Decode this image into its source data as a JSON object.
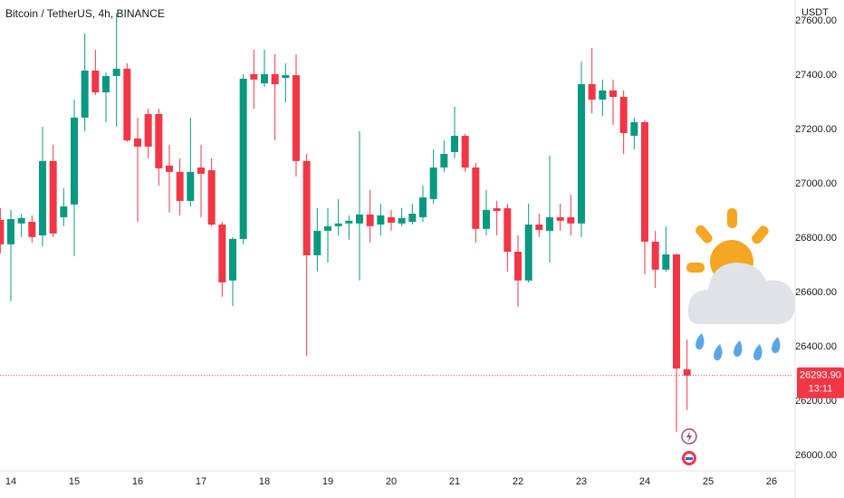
{
  "chart_data": {
    "type": "candlestick",
    "title": "Bitcoin / TetherUS, 4h, BINANCE",
    "y_axis_label": "USDT",
    "categories": [
      null,
      "14",
      null,
      null,
      null,
      null,
      null,
      "15",
      null,
      null,
      null,
      null,
      null,
      "16",
      null,
      null,
      null,
      null,
      null,
      "17",
      null,
      null,
      null,
      null,
      null,
      "18",
      null,
      null,
      null,
      null,
      null,
      "19",
      null,
      null,
      null,
      null,
      null,
      "20",
      null,
      null,
      null,
      null,
      null,
      "21",
      null,
      null,
      null,
      null,
      null,
      "22",
      null,
      null,
      null,
      null,
      null,
      "23",
      null,
      null,
      null,
      null,
      null,
      "24",
      null,
      null,
      null,
      null,
      null,
      "25",
      null,
      null,
      null,
      null,
      null,
      "26",
      null
    ],
    "open": [
      26867,
      26777,
      26854,
      26860,
      26810,
      27084,
      26877,
      26924,
      27244,
      27417,
      27337,
      27397,
      27424,
      27167,
      27257,
      27257,
      27067,
      27044,
      26937,
      27060,
      27050,
      26850,
      26644,
      26797,
      27404,
      27370,
      27404,
      27390,
      27400,
      27084,
      26737,
      26827,
      26844,
      26854,
      26854,
      26887,
      26850,
      26877,
      26854,
      26860,
      26877,
      26944,
      27060,
      27117,
      27177,
      27060,
      26834,
      26910,
      26910,
      26750,
      26644,
      26850,
      26827,
      26877,
      26877,
      26854,
      27367,
      27310,
      27344,
      27320,
      27177,
      27227,
      26787,
      26684,
      26740,
      26317,
      null,
      null,
      null,
      null,
      null,
      null,
      null,
      null,
      null
    ],
    "high": [
      26910,
      26904,
      26890,
      26884,
      27210,
      27144,
      26984,
      27310,
      27554,
      27494,
      27410,
      27627,
      27444,
      27244,
      27277,
      27277,
      27144,
      27094,
      27244,
      27144,
      27094,
      26860,
      26804,
      27404,
      27494,
      27494,
      27477,
      27444,
      27477,
      27110,
      26910,
      26910,
      26944,
      26884,
      27194,
      26977,
      26927,
      26904,
      26910,
      26927,
      26994,
      27127,
      27160,
      27284,
      27184,
      27077,
      26977,
      26937,
      26927,
      26810,
      26927,
      26890,
      27104,
      26927,
      26960,
      27450,
      27500,
      27384,
      27384,
      27344,
      27244,
      27234,
      26827,
      26844,
      26744,
      26427,
      null,
      null,
      null,
      null,
      null,
      null,
      null,
      null,
      null
    ],
    "low": [
      26744,
      26567,
      26804,
      26784,
      26770,
      26804,
      26844,
      26734,
      27194,
      27327,
      27227,
      27210,
      27154,
      26860,
      27094,
      26994,
      26894,
      26884,
      26917,
      26877,
      26844,
      26584,
      26550,
      26777,
      27277,
      27357,
      27160,
      27300,
      27027,
      26367,
      26677,
      26710,
      26810,
      26794,
      26644,
      26784,
      26810,
      26827,
      26844,
      26850,
      26860,
      26927,
      27044,
      27094,
      27044,
      26784,
      26810,
      26810,
      26677,
      26547,
      26637,
      26804,
      26710,
      26827,
      26810,
      26804,
      27260,
      27250,
      27217,
      27110,
      27127,
      26667,
      26617,
      26677,
      26087,
      26167,
      null,
      null,
      null,
      null,
      null,
      null,
      null,
      null,
      null
    ],
    "close": [
      26777,
      26870,
      26874,
      26804,
      27084,
      26817,
      26917,
      27244,
      27417,
      27337,
      27397,
      27424,
      27160,
      27137,
      27137,
      27057,
      27044,
      26937,
      27044,
      27037,
      26850,
      26637,
      26797,
      27387,
      27384,
      27404,
      27367,
      27400,
      27084,
      26737,
      26827,
      26844,
      26854,
      26864,
      26887,
      26844,
      26884,
      26857,
      26874,
      26890,
      26950,
      27060,
      27110,
      27177,
      27060,
      26834,
      26904,
      26900,
      26750,
      26644,
      26850,
      26830,
      26877,
      26864,
      26854,
      27367,
      27310,
      27344,
      27320,
      27187,
      27227,
      26787,
      26684,
      26740,
      26320,
      26293.9,
      null,
      null,
      null,
      null,
      null,
      null,
      null,
      null,
      null
    ],
    "last_price_label": "26293.90",
    "countdown": "13:11",
    "up_color": "#089981",
    "down_color": "#f23645",
    "ylim": [
      25943,
      27677
    ],
    "yticks": [
      {
        "value": 26000,
        "label": "26000.00"
      },
      {
        "value": 26200,
        "label": "26200.00"
      },
      {
        "value": 26400,
        "label": "26400.00"
      },
      {
        "value": 26600,
        "label": "26600.00"
      },
      {
        "value": 26800,
        "label": "26800.00"
      },
      {
        "value": 27000,
        "label": "27000.00"
      },
      {
        "value": 27200,
        "label": "27200.00"
      },
      {
        "value": 27400,
        "label": "27400.00"
      },
      {
        "value": 27600,
        "label": "27600.00"
      }
    ],
    "grid": false
  }
}
